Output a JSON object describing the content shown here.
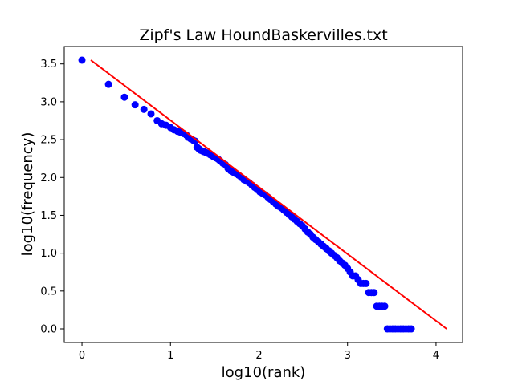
{
  "chart_data": {
    "type": "scatter",
    "title": "Zipf's Law HoundBaskervilles.txt",
    "xlabel": "log10(rank)",
    "ylabel": "log10(frequency)",
    "xlim": [
      -0.2,
      4.3
    ],
    "ylim": [
      -0.18,
      3.73
    ],
    "xticks": [
      0,
      1,
      2,
      3,
      4
    ],
    "xtick_labels": [
      "0",
      "1",
      "2",
      "3",
      "4"
    ],
    "yticks": [
      0.0,
      0.5,
      1.0,
      1.5,
      2.0,
      2.5,
      3.0,
      3.5
    ],
    "ytick_labels": [
      "0.0",
      "0.5",
      "1.0",
      "1.5",
      "2.0",
      "2.5",
      "3.0",
      "3.5"
    ],
    "grid": false,
    "legend": "none",
    "series": [
      {
        "kind": "points",
        "color": "#0000ff",
        "x": [
          0.0,
          0.3,
          0.48,
          0.6,
          0.7,
          0.78,
          0.85,
          0.9,
          0.95,
          1.0,
          1.04,
          1.08,
          1.11,
          1.15,
          1.18,
          1.2,
          1.23,
          1.26,
          1.28,
          1.3,
          1.32,
          1.34,
          1.36,
          1.38,
          1.4,
          1.42,
          1.45,
          1.48,
          1.51,
          1.54,
          1.56,
          1.59,
          1.62,
          1.65,
          1.68,
          1.71,
          1.74,
          1.77,
          1.8,
          1.83,
          1.86,
          1.89,
          1.92,
          1.95,
          1.98,
          2.01,
          2.04,
          2.07,
          2.1,
          2.13,
          2.16,
          2.19,
          2.22,
          2.25,
          2.28,
          2.31,
          2.34,
          2.37,
          2.4,
          2.43,
          2.46,
          2.49,
          2.52,
          2.55,
          2.58,
          2.61,
          2.64,
          2.67,
          2.7,
          2.73,
          2.76,
          2.79,
          2.82,
          2.85,
          2.88,
          2.91,
          2.94,
          2.97,
          3.0,
          3.03,
          3.06,
          3.09,
          3.12,
          3.15,
          3.18,
          3.21,
          3.24,
          3.27,
          3.3,
          3.33,
          3.36,
          3.39,
          3.42,
          3.45,
          3.48,
          3.51,
          3.54,
          3.57,
          3.6,
          3.63,
          3.66,
          3.69,
          3.72
        ],
        "y": [
          3.55,
          3.23,
          3.06,
          2.96,
          2.9,
          2.84,
          2.75,
          2.71,
          2.69,
          2.66,
          2.63,
          2.61,
          2.6,
          2.58,
          2.56,
          2.53,
          2.51,
          2.49,
          2.48,
          2.4,
          2.38,
          2.36,
          2.35,
          2.34,
          2.33,
          2.32,
          2.3,
          2.28,
          2.26,
          2.24,
          2.22,
          2.19,
          2.17,
          2.12,
          2.09,
          2.07,
          2.05,
          2.03,
          2.0,
          1.97,
          1.95,
          1.93,
          1.9,
          1.87,
          1.84,
          1.81,
          1.79,
          1.77,
          1.74,
          1.71,
          1.68,
          1.65,
          1.62,
          1.6,
          1.57,
          1.54,
          1.51,
          1.48,
          1.45,
          1.42,
          1.39,
          1.36,
          1.32,
          1.28,
          1.25,
          1.21,
          1.18,
          1.15,
          1.12,
          1.09,
          1.06,
          1.03,
          1.0,
          0.97,
          0.94,
          0.9,
          0.87,
          0.84,
          0.8,
          0.75,
          0.7,
          0.7,
          0.65,
          0.6,
          0.6,
          0.6,
          0.48,
          0.48,
          0.48,
          0.3,
          0.3,
          0.3,
          0.3,
          0.0,
          0.0,
          0.0,
          0.0,
          0.0,
          0.0,
          0.0,
          0.0,
          0.0,
          0.0
        ]
      },
      {
        "kind": "line",
        "color": "#ff0000",
        "x": [
          0.1,
          4.12
        ],
        "y": [
          3.55,
          0.0
        ]
      }
    ]
  }
}
